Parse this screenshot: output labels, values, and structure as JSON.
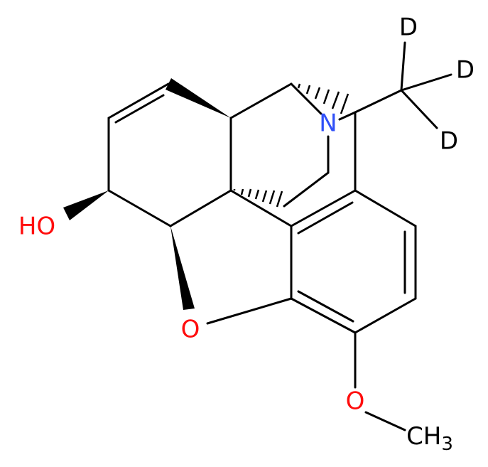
{
  "atoms": {
    "deuterium": [
      "D",
      "D",
      "D"
    ],
    "nitrogen": "N",
    "hydroxyl": "HO",
    "ring_oxygen": "O",
    "methoxy_oxygen": "O",
    "methyl": {
      "text": "CH",
      "subscript": "3"
    }
  }
}
